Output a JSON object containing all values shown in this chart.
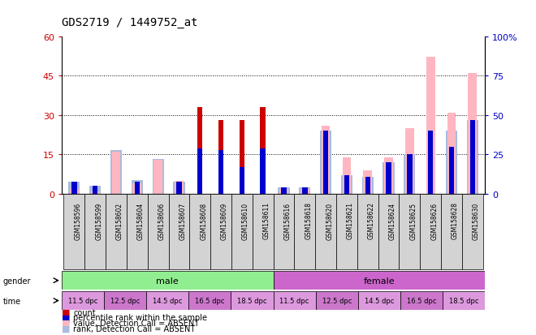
{
  "title": "GDS2719 / 1449752_at",
  "samples": [
    "GSM158596",
    "GSM158599",
    "GSM158602",
    "GSM158604",
    "GSM158606",
    "GSM158607",
    "GSM158608",
    "GSM158609",
    "GSM158610",
    "GSM158611",
    "GSM158616",
    "GSM158618",
    "GSM158620",
    "GSM158621",
    "GSM158622",
    "GSM158624",
    "GSM158625",
    "GSM158626",
    "GSM158628",
    "GSM158630"
  ],
  "count_values": [
    0,
    0,
    0,
    0,
    0,
    0,
    33,
    28,
    28,
    33,
    0,
    0,
    0,
    0,
    0,
    0,
    0,
    0,
    0,
    0
  ],
  "percentile_values_pct": [
    8,
    5,
    0,
    8,
    0,
    8,
    29,
    28,
    17,
    29,
    4,
    4,
    40,
    12,
    11,
    20,
    25,
    40,
    30,
    47
  ],
  "absent_value_bars": [
    2,
    1,
    16,
    4,
    13,
    5,
    0,
    0,
    0,
    0,
    2,
    2,
    26,
    14,
    9,
    14,
    25,
    52,
    31,
    46
  ],
  "absent_rank_pct": [
    8,
    5,
    28,
    9,
    22,
    8,
    0,
    0,
    0,
    0,
    4,
    4,
    40,
    12,
    11,
    20,
    25,
    0,
    40,
    47
  ],
  "gender_groups": [
    {
      "label": "male",
      "start": 0,
      "end": 10,
      "color": "#90ee90"
    },
    {
      "label": "female",
      "start": 10,
      "end": 20,
      "color": "#cc66cc"
    }
  ],
  "time_groups": [
    {
      "label": "11.5 dpc",
      "start": 0,
      "end": 2
    },
    {
      "label": "12.5 dpc",
      "start": 2,
      "end": 4
    },
    {
      "label": "14.5 dpc",
      "start": 4,
      "end": 6
    },
    {
      "label": "16.5 dpc",
      "start": 6,
      "end": 8
    },
    {
      "label": "18.5 dpc",
      "start": 8,
      "end": 10
    },
    {
      "label": "11.5 dpc",
      "start": 10,
      "end": 12
    },
    {
      "label": "12.5 dpc",
      "start": 12,
      "end": 14
    },
    {
      "label": "14.5 dpc",
      "start": 14,
      "end": 16
    },
    {
      "label": "16.5 dpc",
      "start": 16,
      "end": 18
    },
    {
      "label": "18.5 dpc",
      "start": 18,
      "end": 20
    }
  ],
  "time_colors": [
    "#dd99dd",
    "#cc77cc",
    "#dd99dd",
    "#cc77cc",
    "#dd99dd",
    "#dd99dd",
    "#cc77cc",
    "#dd99dd",
    "#cc77cc",
    "#dd99dd"
  ],
  "ylim_left": [
    0,
    60
  ],
  "ylim_right": [
    0,
    100
  ],
  "yticks_left": [
    0,
    15,
    30,
    45,
    60
  ],
  "yticks_right": [
    0,
    25,
    50,
    75,
    100
  ],
  "left_axis_color": "#cc0000",
  "right_axis_color": "#0000cc",
  "count_color": "#cc0000",
  "percentile_color": "#0000cc",
  "absent_value_color": "#ffb6c1",
  "absent_rank_color": "#aabbdd",
  "bg_color": "#ffffff",
  "grid_color": "#000000",
  "sample_bg_color": "#d3d3d3"
}
